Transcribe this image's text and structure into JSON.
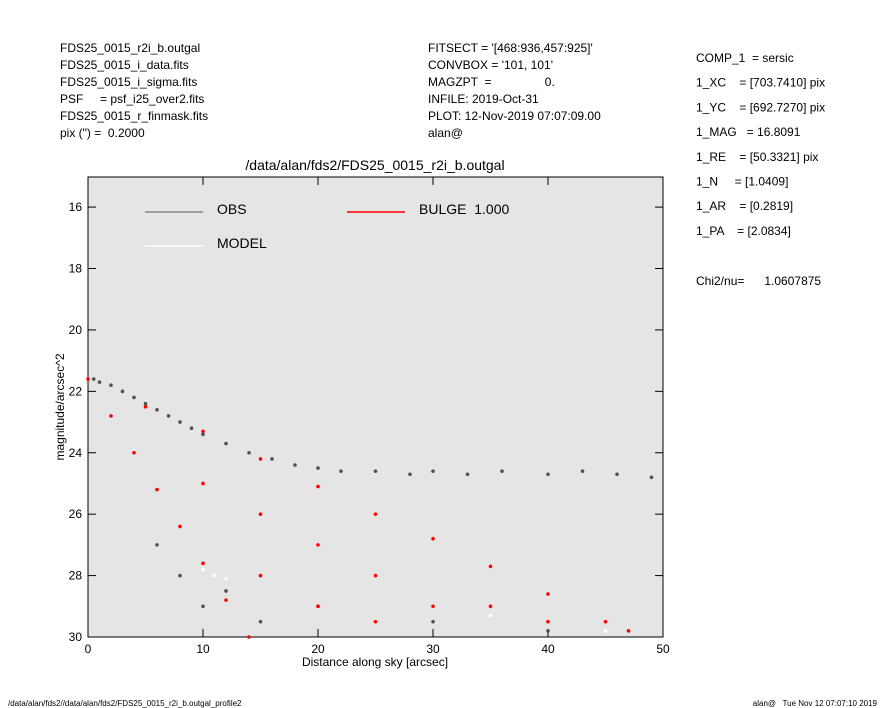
{
  "header": {
    "left": [
      "FDS25_0015_r2i_b.outgal",
      "FDS25_0015_i_data.fits",
      "FDS25_0015_i_sigma.fits",
      "PSF     = psf_i25_over2.fits",
      "FDS25_0015_r_finmask.fits",
      "pix (\") =  0.2000"
    ],
    "middle": [
      "FITSECT = '[468:936,457:925]'",
      "CONVBOX = '101, 101'",
      "MAGZPT  =                0.",
      "INFILE: 2019-Oct-31",
      "PLOT: 12-Nov-2019 07:07:09.00",
      "alan@"
    ],
    "right": [
      "COMP_1  = sersic",
      "1_XC    = [703.7410] pix",
      "1_YC    = [692.7270] pix",
      "1_MAG   = 16.8091",
      "1_RE    = [50.3321] pix",
      "1_N     = [1.0409]",
      "1_AR    = [0.2819]",
      "1_PA    = [2.0834]"
    ],
    "chi2": "Chi2/nu=      1.0607875"
  },
  "footer": {
    "left": "/data/alan/fds2//data/alan/fds2/FDS25_0015_r2i_b.outgal_profile2",
    "right": "alan@   Tue Nov 12 07:07:10 2019"
  },
  "chart_data": {
    "type": "scatter",
    "title": "/data/alan/fds2/FDS25_0015_r2i_b.outgal",
    "x_label": "Distance along sky [arcsec]",
    "y_label": "magnitude/arcsec^2",
    "xlim": [
      0,
      50
    ],
    "ylim": [
      30,
      15.02
    ],
    "xticks": [
      0,
      10,
      20,
      30,
      40,
      50
    ],
    "yticks": [
      16,
      18,
      20,
      22,
      24,
      26,
      28,
      30
    ],
    "series": [
      {
        "name": "OBS",
        "color": "#505050",
        "x": [
          0.5,
          1,
          2,
          3,
          4,
          5,
          6,
          7,
          8,
          9,
          10,
          12,
          14,
          16,
          18,
          20,
          22,
          25,
          28,
          30,
          33,
          36,
          40,
          43,
          46,
          49,
          6,
          8,
          10,
          12,
          15,
          20,
          30,
          40
        ],
        "y": [
          21.6,
          21.7,
          21.8,
          22.0,
          22.2,
          22.4,
          22.6,
          22.8,
          23.0,
          23.2,
          23.4,
          23.7,
          24.0,
          24.2,
          24.4,
          24.5,
          24.6,
          24.6,
          24.7,
          24.6,
          24.7,
          24.6,
          24.7,
          24.6,
          24.7,
          24.8,
          27,
          28,
          29,
          28.5,
          29.5,
          29,
          29.5,
          29.8
        ]
      },
      {
        "name": "MODEL",
        "color": "#ffffff",
        "x": [
          10,
          11,
          12,
          35,
          45
        ],
        "y": [
          27.8,
          28,
          28.1,
          29.3,
          29.8
        ]
      },
      {
        "name": "BULGE  1.000",
        "color": "#ff0000",
        "x": [
          0,
          5,
          10,
          15,
          20,
          25,
          30,
          35,
          40,
          45,
          47,
          2,
          4,
          6,
          8,
          10,
          12,
          14,
          10,
          15,
          20,
          25,
          30,
          35,
          15,
          20,
          25,
          40
        ],
        "y": [
          21.6,
          22.5,
          23.3,
          24.2,
          25.1,
          26.0,
          26.8,
          27.7,
          28.6,
          29.5,
          29.8,
          22.8,
          24.0,
          25.2,
          26.4,
          27.6,
          28.8,
          30.0,
          25,
          26,
          27,
          28,
          29,
          29,
          28,
          29,
          29.5,
          29.5
        ]
      }
    ]
  }
}
